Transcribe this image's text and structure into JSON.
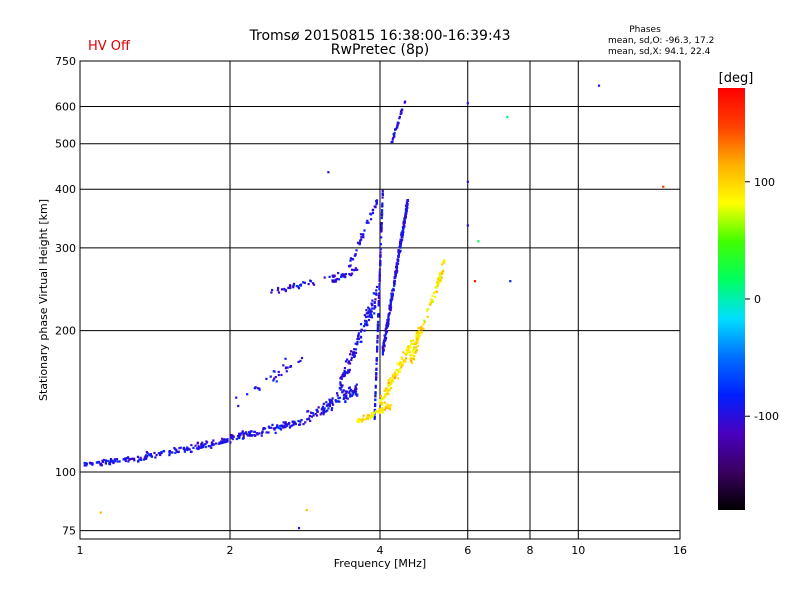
{
  "status": {
    "label": "HV Off",
    "color": "#e00000"
  },
  "chart_data": {
    "type": "scatter",
    "title": "Tromsø 20150815 16:38:00-16:39:43",
    "subtitle": "RwPretec (8p)",
    "xlabel": "Frequency [MHz]",
    "ylabel": "Stationary phase Virtual Height [km]",
    "x_scale": "log",
    "y_scale": "log",
    "xlim": [
      1,
      16
    ],
    "ylim": [
      72,
      750
    ],
    "x_ticks": [
      1,
      2,
      4,
      6,
      8,
      10,
      16
    ],
    "y_ticks": [
      75,
      100,
      200,
      300,
      400,
      500,
      600,
      750
    ],
    "grid": true,
    "stats": {
      "title": "Phases",
      "line_o": "mean, sd,O: -96.3, 17.2",
      "line_x": "mean, sd,X:  94.1, 22.4"
    },
    "colorbar": {
      "label": "[deg]",
      "range": [
        -180,
        180
      ],
      "ticks": [
        100,
        0,
        -100
      ],
      "stops": [
        "#000000",
        "#3a0060",
        "#4a00c0",
        "#0020ff",
        "#0070ff",
        "#00e0ff",
        "#00ff60",
        "#40ff00",
        "#ffff00",
        "#ffb000",
        "#ff4000",
        "#ff0000"
      ]
    },
    "series": [
      {
        "phase_deg": -96.3,
        "segments": [
          {
            "f0": 1.02,
            "f1": 1.35,
            "h0": 104,
            "h1": 107,
            "n": 70,
            "spread": 0.02
          },
          {
            "f0": 1.35,
            "f1": 2.0,
            "h0": 108,
            "h1": 117,
            "n": 110,
            "spread": 0.025
          },
          {
            "f0": 2.0,
            "f1": 2.8,
            "h0": 118,
            "h1": 128,
            "n": 110,
            "spread": 0.03
          },
          {
            "f0": 2.8,
            "f1": 3.6,
            "h0": 128,
            "h1": 150,
            "n": 110,
            "spread": 0.05
          },
          {
            "f0": 3.3,
            "f1": 3.95,
            "h0": 150,
            "h1": 240,
            "n": 120,
            "spread": 0.07
          },
          {
            "f0": 3.9,
            "f1": 4.05,
            "h0": 130,
            "h1": 395,
            "n": 130,
            "spread": 0.02
          },
          {
            "f0": 4.05,
            "f1": 4.55,
            "h0": 180,
            "h1": 380,
            "n": 260,
            "spread": 0.04
          },
          {
            "f0": 2.35,
            "f1": 3.4,
            "h0": 240,
            "h1": 265,
            "n": 40,
            "spread": 0.02
          },
          {
            "f0": 3.2,
            "f1": 3.6,
            "h0": 255,
            "h1": 270,
            "n": 30,
            "spread": 0.02
          },
          {
            "f0": 3.45,
            "f1": 3.95,
            "h0": 270,
            "h1": 380,
            "n": 40,
            "spread": 0.03
          },
          {
            "f0": 4.2,
            "f1": 4.5,
            "h0": 495,
            "h1": 620,
            "n": 30,
            "spread": 0.02
          },
          {
            "f0": 2.05,
            "f1": 2.8,
            "h0": 140,
            "h1": 175,
            "n": 30,
            "spread": 0.06
          }
        ]
      },
      {
        "phase_deg": 94.1,
        "segments": [
          {
            "f0": 3.6,
            "f1": 4.2,
            "h0": 128,
            "h1": 138,
            "n": 60,
            "spread": 0.02
          },
          {
            "f0": 4.0,
            "f1": 4.8,
            "h0": 140,
            "h1": 200,
            "n": 120,
            "spread": 0.05
          },
          {
            "f0": 4.6,
            "f1": 5.4,
            "h0": 170,
            "h1": 280,
            "n": 90,
            "spread": 0.05
          }
        ]
      }
    ],
    "sparse_points": [
      {
        "f": 6.0,
        "h": 610,
        "phase": -100
      },
      {
        "f": 6.0,
        "h": 415,
        "phase": -100
      },
      {
        "f": 6.0,
        "h": 335,
        "phase": -100
      },
      {
        "f": 7.2,
        "h": 570,
        "phase": 10
      },
      {
        "f": 7.3,
        "h": 255,
        "phase": -90
      },
      {
        "f": 6.3,
        "h": 310,
        "phase": 20
      },
      {
        "f": 6.2,
        "h": 255,
        "phase": 170
      },
      {
        "f": 11,
        "h": 665,
        "phase": -100
      },
      {
        "f": 14.8,
        "h": 405,
        "phase": 150
      },
      {
        "f": 1.1,
        "h": 82,
        "phase": 110
      },
      {
        "f": 2.85,
        "h": 83,
        "phase": 110
      },
      {
        "f": 2.75,
        "h": 76,
        "phase": -100
      },
      {
        "f": 3.15,
        "h": 435,
        "phase": -100
      }
    ]
  }
}
